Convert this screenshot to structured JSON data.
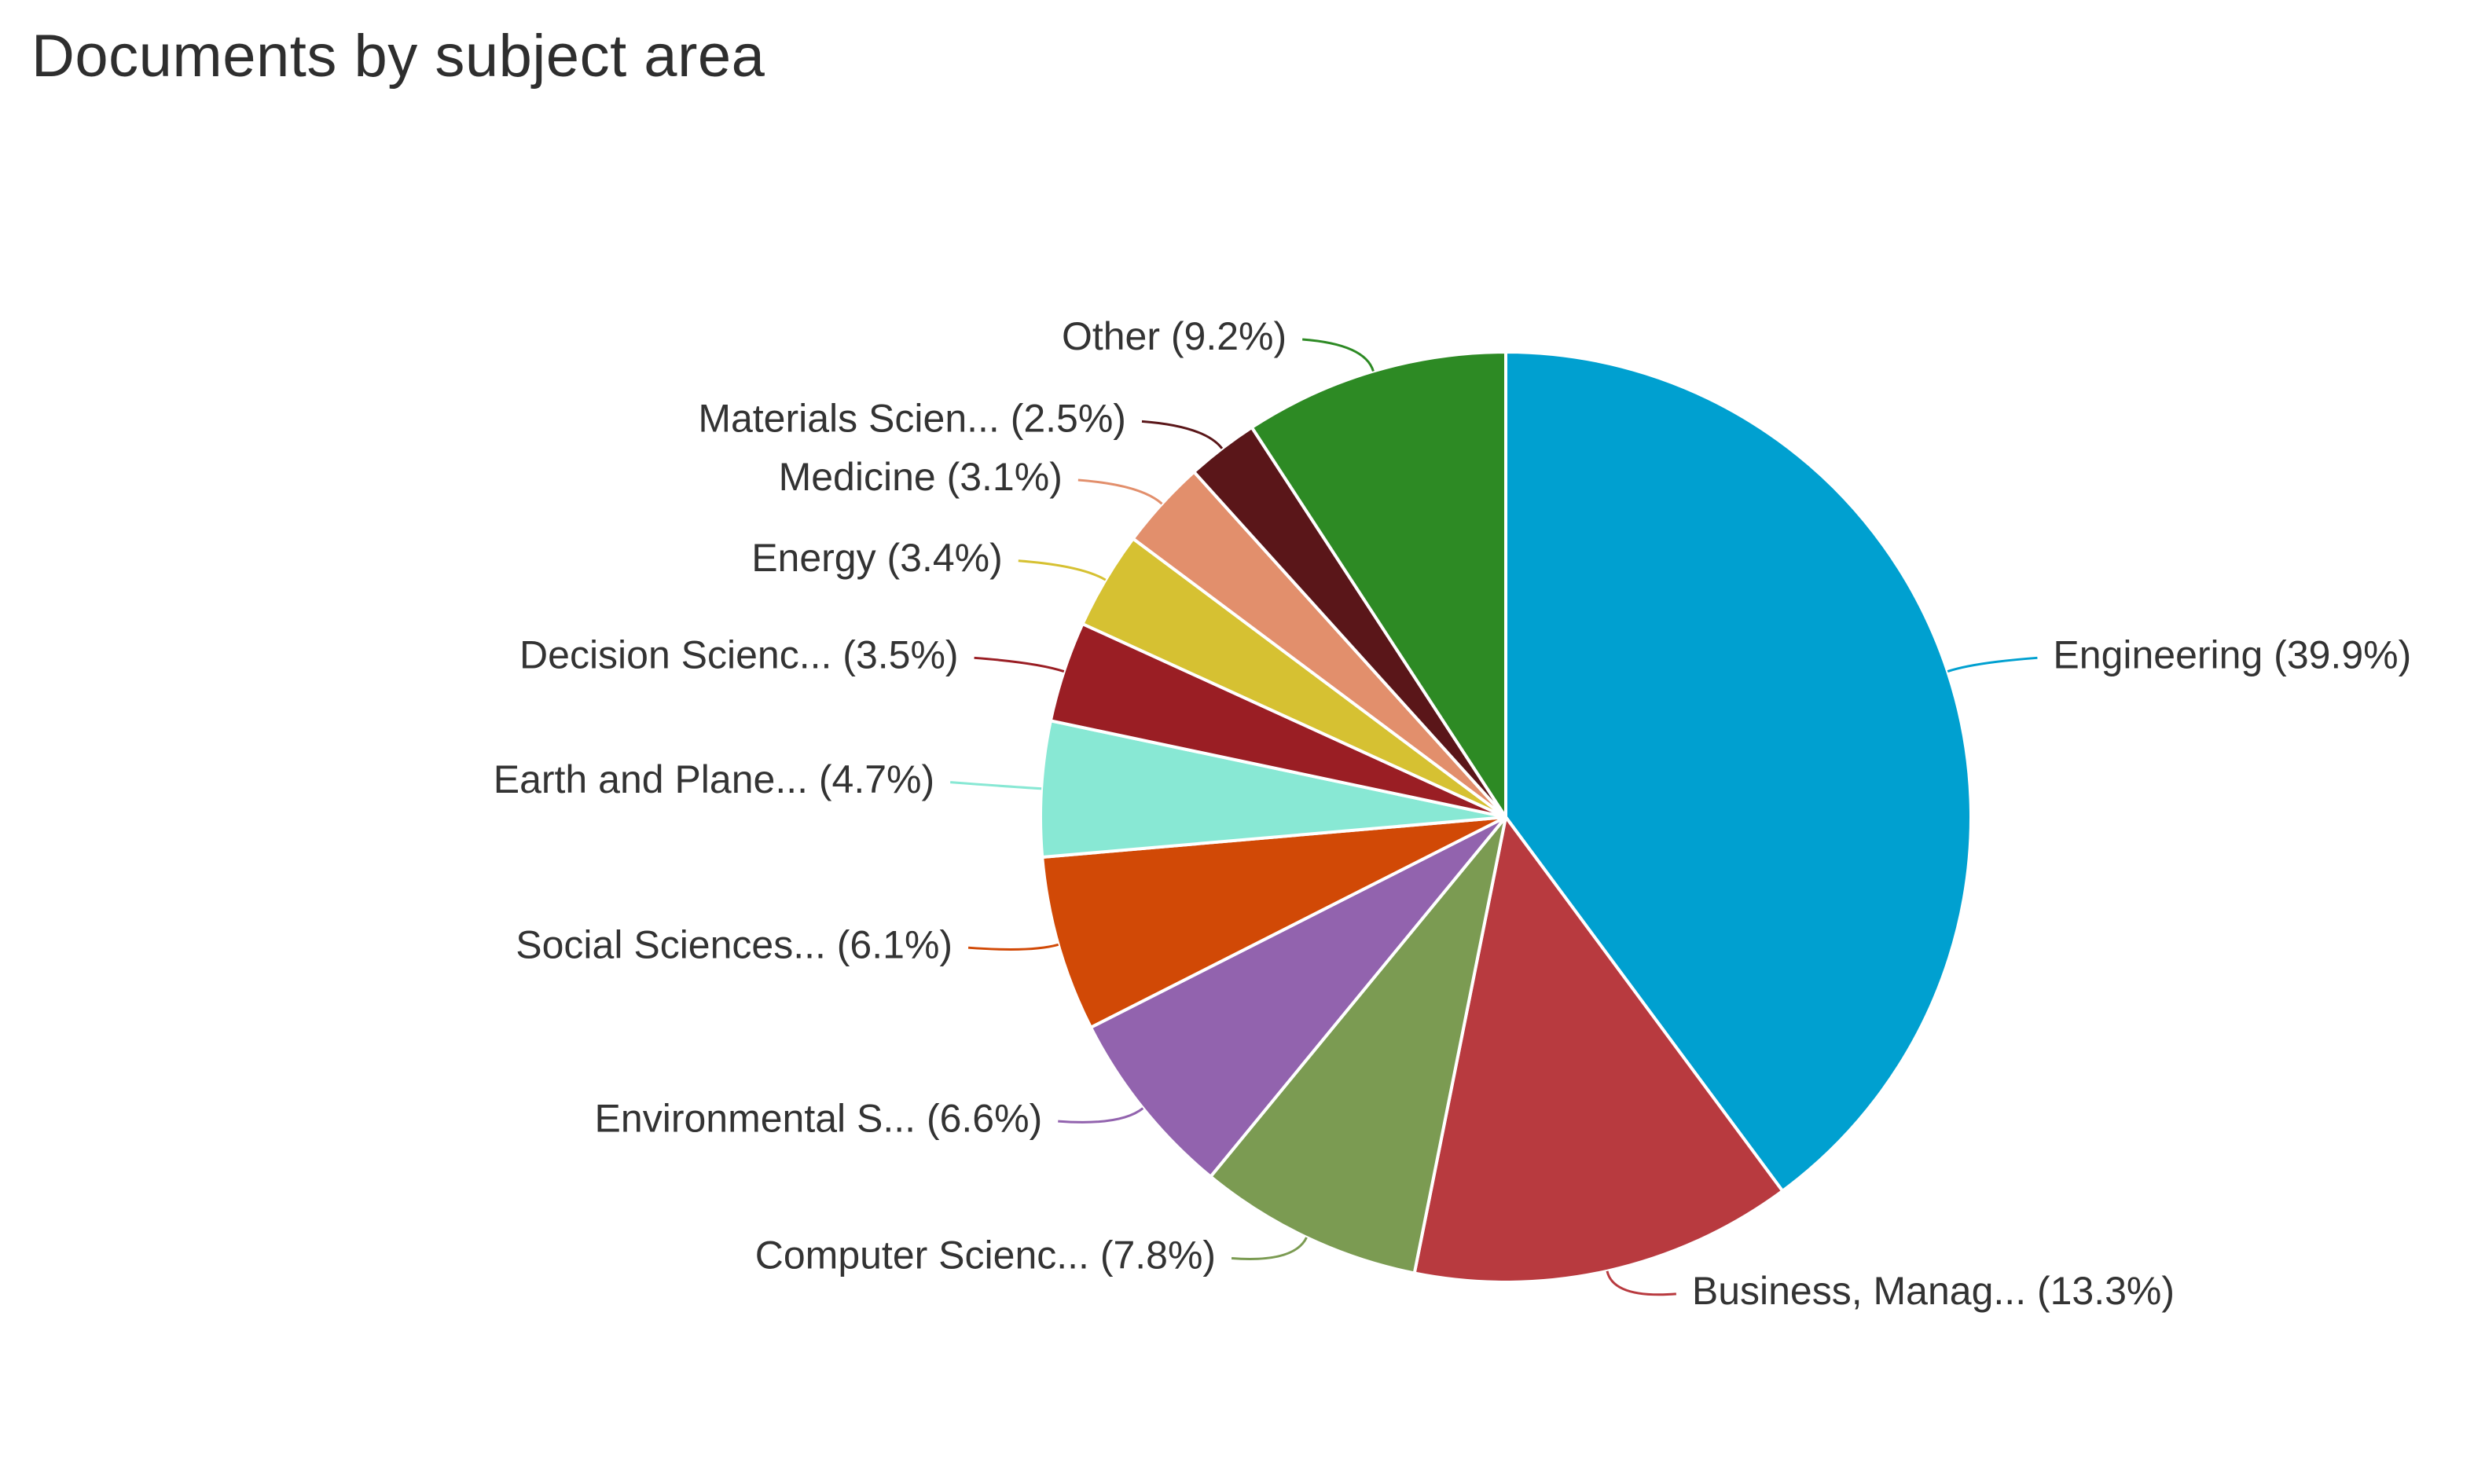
{
  "chart_data": {
    "type": "pie",
    "title": "Documents by subject area",
    "slices": [
      {
        "name": "Engineering",
        "percent": 39.9,
        "label": "Engineering (39.9%)",
        "color": "#00a0d0"
      },
      {
        "name": "Business, Manag...",
        "percent": 13.3,
        "label": "Business, Manag... (13.3%)",
        "color": "#b83a3f"
      },
      {
        "name": "Computer Scienc...",
        "percent": 7.8,
        "label": "Computer Scienc... (7.8%)",
        "color": "#7b9b52"
      },
      {
        "name": "Environmental S...",
        "percent": 6.6,
        "label": "Environmental S... (6.6%)",
        "color": "#9263ae"
      },
      {
        "name": "Social Sciences...",
        "percent": 6.1,
        "label": "Social Sciences... (6.1%)",
        "color": "#d14906"
      },
      {
        "name": "Earth and Plane...",
        "percent": 4.7,
        "label": "Earth and Plane... (4.7%)",
        "color": "#88e8d4"
      },
      {
        "name": "Decision Scienc...",
        "percent": 3.5,
        "label": "Decision Scienc... (3.5%)",
        "color": "#9a1e24"
      },
      {
        "name": "Energy",
        "percent": 3.4,
        "label": "Energy (3.4%)",
        "color": "#d6c132"
      },
      {
        "name": "Medicine",
        "percent": 3.1,
        "label": "Medicine (3.1%)",
        "color": "#e28f6c"
      },
      {
        "name": "Materials Scien...",
        "percent": 2.5,
        "label": "Materials Scien... (2.5%)",
        "color": "#5a1619"
      },
      {
        "name": "Other",
        "percent": 9.2,
        "label": "Other (9.2%)",
        "color": "#2d8a24"
      }
    ]
  }
}
